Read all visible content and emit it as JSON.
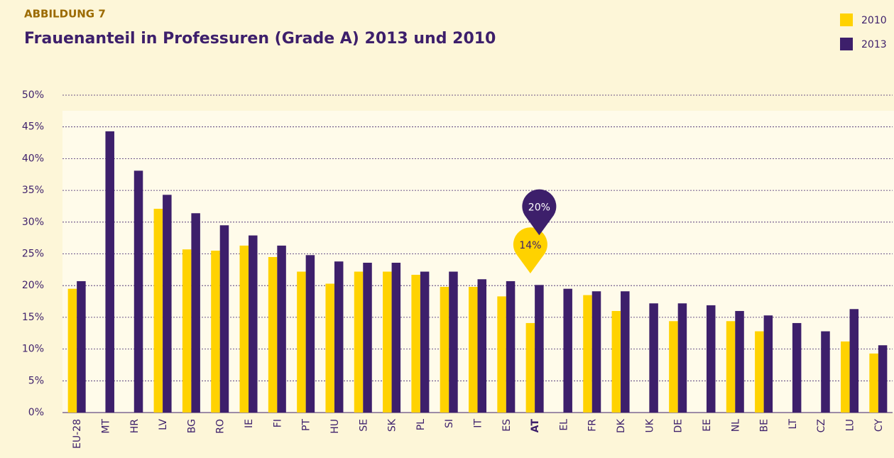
{
  "chart_data": {
    "type": "bar",
    "kicker": "ABBILDUNG 7",
    "title": "Frauenanteil in Professuren (Grade A) 2013 und 2010",
    "categories": [
      "EU-28",
      "MT",
      "HR",
      "LV",
      "BG",
      "RO",
      "IE",
      "FI",
      "PT",
      "HU",
      "SE",
      "SK",
      "PL",
      "SI",
      "IT",
      "ES",
      "AT",
      "EL",
      "FR",
      "DK",
      "UK",
      "DE",
      "EE",
      "NL",
      "BE",
      "LT",
      "CZ",
      "LU",
      "CY"
    ],
    "series": [
      {
        "name": "2010",
        "color": "#ffd200",
        "values": [
          19.5,
          null,
          null,
          32.1,
          25.7,
          25.5,
          26.3,
          24.5,
          22.2,
          20.3,
          22.2,
          22.2,
          21.7,
          19.8,
          19.8,
          18.3,
          14.1,
          null,
          18.5,
          16.0,
          null,
          14.4,
          null,
          14.4,
          12.8,
          null,
          null,
          11.2,
          9.3
        ],
        "value_labels": [
          null,
          null,
          null,
          null,
          null,
          null,
          null,
          null,
          null,
          null,
          null,
          null,
          null,
          null,
          null,
          null,
          "14%",
          null,
          null,
          null,
          null,
          null,
          null,
          null,
          null,
          null,
          null,
          null,
          null
        ]
      },
      {
        "name": "2013",
        "color": "#3d1f6b",
        "values": [
          20.7,
          44.3,
          38.1,
          34.3,
          31.4,
          29.5,
          27.9,
          26.3,
          24.8,
          23.8,
          23.6,
          23.6,
          22.2,
          22.2,
          21.0,
          20.7,
          20.1,
          19.5,
          19.1,
          19.1,
          17.2,
          17.2,
          16.9,
          16.0,
          15.3,
          14.1,
          12.8,
          16.3,
          10.6
        ],
        "value_labels": [
          null,
          null,
          null,
          null,
          null,
          null,
          null,
          null,
          null,
          null,
          null,
          null,
          null,
          null,
          null,
          null,
          "20%",
          null,
          null,
          null,
          null,
          null,
          null,
          null,
          null,
          null,
          null,
          null,
          null
        ]
      }
    ],
    "ylim": [
      0,
      50
    ],
    "yticks": [
      {
        "value": 0,
        "label": "0%"
      },
      {
        "value": 5,
        "label": "5%"
      },
      {
        "value": 10,
        "label": "10%"
      },
      {
        "value": 15,
        "label": "15%"
      },
      {
        "value": 20,
        "label": "20%"
      },
      {
        "value": 25,
        "label": "25%"
      },
      {
        "value": 30,
        "label": "30%"
      },
      {
        "value": 35,
        "label": "35%"
      },
      {
        "value": 40,
        "label": "40%"
      },
      {
        "value": 45,
        "label": "45%"
      },
      {
        "value": 50,
        "label": "50%"
      }
    ],
    "grid": true,
    "legend": "top-right"
  }
}
